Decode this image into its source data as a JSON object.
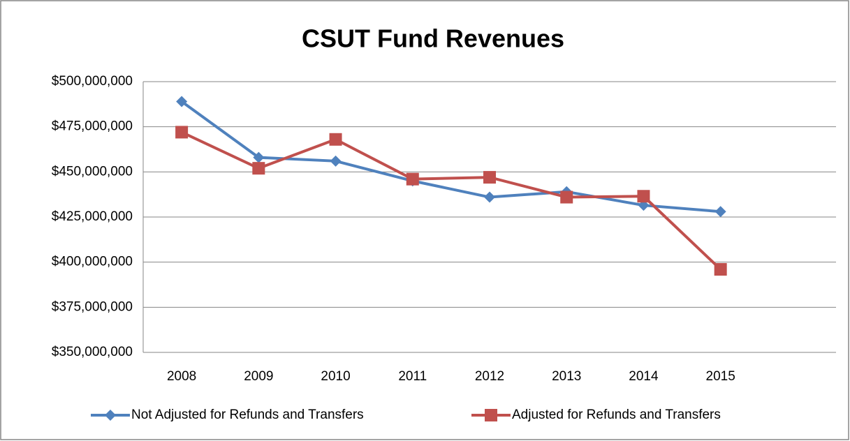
{
  "chart_data": {
    "type": "line",
    "title": "CSUT Fund Revenues",
    "categories": [
      "2008",
      "2009",
      "2010",
      "2011",
      "2012",
      "2013",
      "2014",
      "2015",
      null
    ],
    "series": [
      {
        "name": "Not Adjusted for Refunds and Transfers",
        "color": "#4f81bd",
        "marker": "diamond",
        "values": [
          489000000,
          458000000,
          456000000,
          445000000,
          436000000,
          439000000,
          431500000,
          428000000,
          null
        ]
      },
      {
        "name": "Adjusted for Refunds and Transfers",
        "color": "#c0504d",
        "marker": "square",
        "values": [
          472000000,
          452000000,
          468000000,
          446000000,
          447000000,
          436000000,
          436500000,
          396000000,
          null
        ]
      }
    ],
    "ylim": [
      350000000,
      500000000
    ],
    "yticks": [
      {
        "value": 350000000,
        "label": "$350,000,000"
      },
      {
        "value": 375000000,
        "label": "$375,000,000"
      },
      {
        "value": 400000000,
        "label": "$400,000,000"
      },
      {
        "value": 425000000,
        "label": "$425,000,000"
      },
      {
        "value": 450000000,
        "label": "$450,000,000"
      },
      {
        "value": 475000000,
        "label": "$475,000,000"
      },
      {
        "value": 500000000,
        "label": "$500,000,000"
      }
    ],
    "grid": true,
    "legend": "bottom"
  }
}
